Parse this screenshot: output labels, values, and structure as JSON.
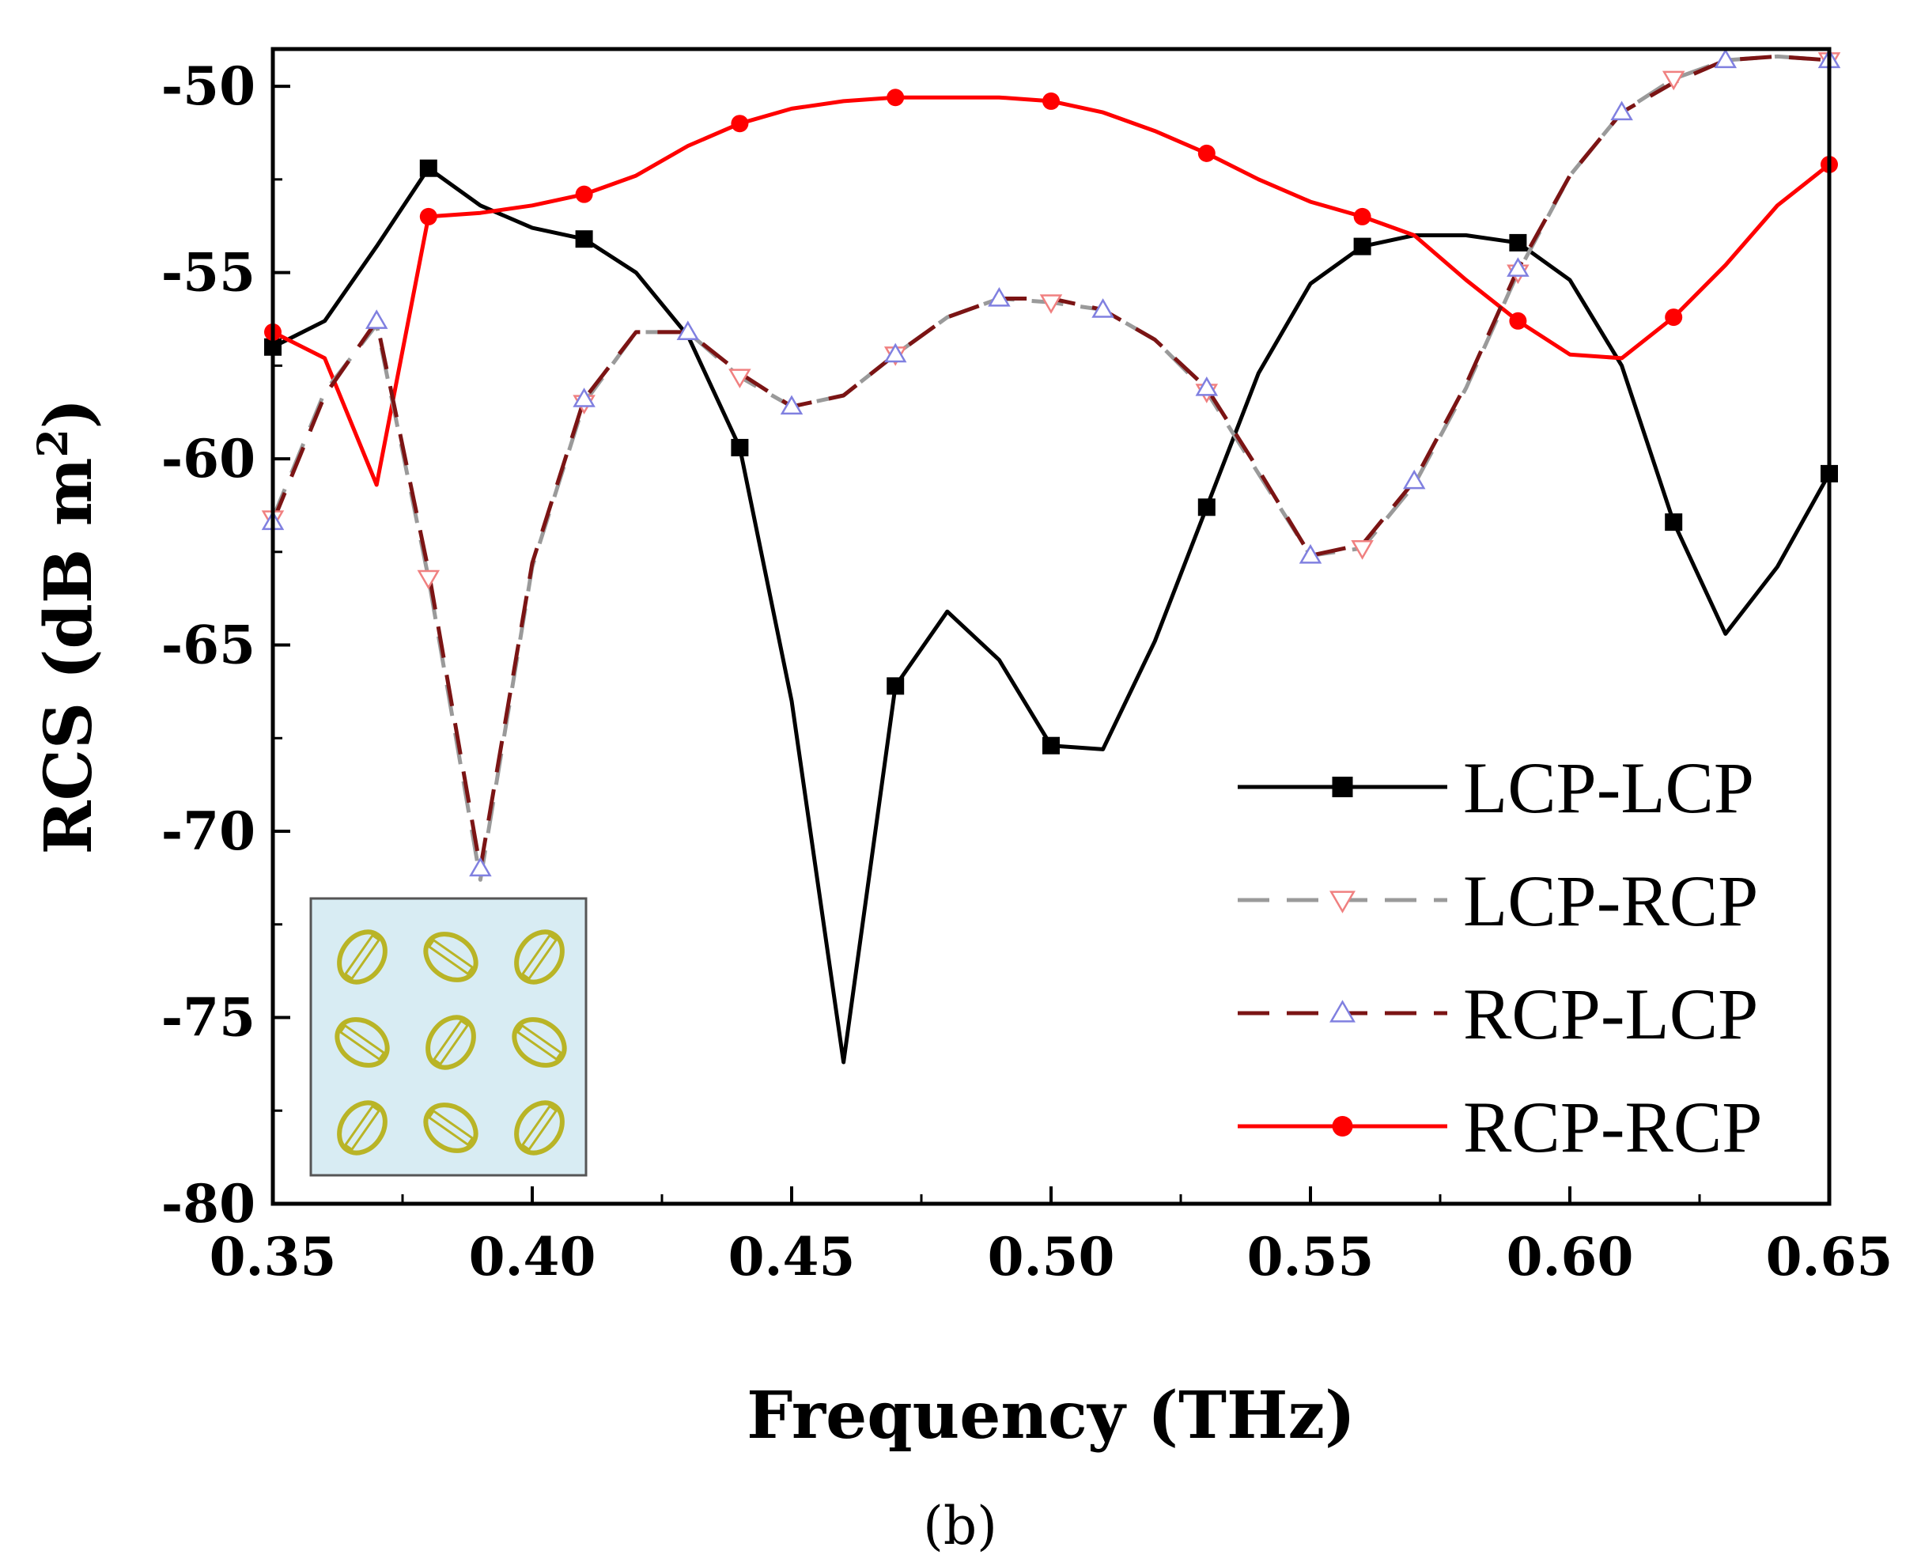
{
  "chart_data": {
    "type": "line",
    "xlabel": "Frequency (THz)",
    "ylabel_main": "RCS (dB m",
    "ylabel_sup": "2",
    "ylabel_close": ")",
    "caption": "(b)",
    "xlim": [
      0.35,
      0.65
    ],
    "ylim": [
      -80,
      -49
    ],
    "x_ticks": [
      0.35,
      0.4,
      0.45,
      0.5,
      0.55,
      0.6,
      0.65
    ],
    "x_tick_labels": [
      "0.35",
      "0.40",
      "0.45",
      "0.50",
      "0.55",
      "0.60",
      "0.65"
    ],
    "y_ticks": [
      -80,
      -75,
      -70,
      -65,
      -60,
      -55,
      -50
    ],
    "y_tick_labels": [
      "-80",
      "-75",
      "-70",
      "-65",
      "-60",
      "-55",
      "-50"
    ],
    "legend_position": "bottom-right",
    "inset": "metasurface unit cell array (3x3 split-ring elements)",
    "series": [
      {
        "name": "LCP-LCP",
        "color": "#000000",
        "dash": "solid",
        "marker": "square",
        "x": [
          0.35,
          0.36,
          0.37,
          0.38,
          0.39,
          0.4,
          0.41,
          0.42,
          0.43,
          0.44,
          0.45,
          0.46,
          0.47,
          0.48,
          0.49,
          0.5,
          0.51,
          0.52,
          0.53,
          0.54,
          0.55,
          0.56,
          0.57,
          0.58,
          0.59,
          0.6,
          0.61,
          0.62,
          0.63,
          0.64,
          0.65
        ],
        "y": [
          -57.0,
          -56.3,
          -54.3,
          -52.2,
          -53.2,
          -53.8,
          -54.1,
          -55.0,
          -56.7,
          -59.7,
          -66.5,
          -76.2,
          -66.1,
          -64.1,
          -65.4,
          -67.7,
          -67.8,
          -64.9,
          -61.3,
          -57.7,
          -55.3,
          -54.3,
          -54.0,
          -54.0,
          -54.2,
          -55.2,
          -57.5,
          -61.7,
          -64.7,
          -62.9,
          -60.4
        ],
        "marker_x": [
          0.35,
          0.38,
          0.41,
          0.44,
          0.47,
          0.5,
          0.53,
          0.56,
          0.59,
          0.62,
          0.65
        ]
      },
      {
        "name": "LCP-RCP",
        "color": "#9a9a9a",
        "dash": "dashed",
        "marker": "down-triangle",
        "marker_color": "#f08080",
        "x": [
          0.35,
          0.36,
          0.37,
          0.38,
          0.39,
          0.4,
          0.41,
          0.42,
          0.43,
          0.44,
          0.45,
          0.46,
          0.47,
          0.48,
          0.49,
          0.5,
          0.51,
          0.52,
          0.53,
          0.54,
          0.55,
          0.56,
          0.57,
          0.58,
          0.59,
          0.6,
          0.61,
          0.62,
          0.63,
          0.64,
          0.65
        ],
        "y": [
          -61.6,
          -58.2,
          -56.4,
          -63.2,
          -71.3,
          -62.9,
          -58.5,
          -56.6,
          -56.6,
          -57.8,
          -58.6,
          -58.3,
          -57.2,
          -56.2,
          -55.7,
          -55.8,
          -56.0,
          -56.8,
          -58.2,
          -60.4,
          -62.6,
          -62.4,
          -60.7,
          -58.1,
          -55.0,
          -52.4,
          -50.7,
          -49.8,
          -49.3,
          -49.2,
          -49.3
        ],
        "marker_x": [
          0.35,
          0.38,
          0.41,
          0.44,
          0.47,
          0.5,
          0.53,
          0.56,
          0.59,
          0.62,
          0.65
        ]
      },
      {
        "name": "RCP-LCP",
        "color": "#7b1414",
        "dash": "dashed",
        "marker": "up-triangle",
        "marker_color": "#8080e0",
        "x": [
          0.35,
          0.36,
          0.37,
          0.38,
          0.39,
          0.4,
          0.41,
          0.42,
          0.43,
          0.44,
          0.45,
          0.46,
          0.47,
          0.48,
          0.49,
          0.5,
          0.51,
          0.52,
          0.53,
          0.54,
          0.55,
          0.56,
          0.57,
          0.58,
          0.59,
          0.6,
          0.61,
          0.62,
          0.63,
          0.64,
          0.65
        ],
        "y": [
          -61.7,
          -58.3,
          -56.3,
          -63.0,
          -71.0,
          -62.8,
          -58.4,
          -56.6,
          -56.6,
          -57.7,
          -58.6,
          -58.3,
          -57.2,
          -56.2,
          -55.7,
          -55.7,
          -56.0,
          -56.8,
          -58.1,
          -60.3,
          -62.6,
          -62.3,
          -60.6,
          -58.0,
          -54.9,
          -52.4,
          -50.7,
          -49.9,
          -49.3,
          -49.2,
          -49.3
        ],
        "marker_x": [
          0.35,
          0.37,
          0.39,
          0.41,
          0.43,
          0.45,
          0.47,
          0.49,
          0.51,
          0.53,
          0.55,
          0.57,
          0.59,
          0.61,
          0.63,
          0.65
        ]
      },
      {
        "name": "RCP-RCP",
        "color": "#ff0000",
        "dash": "solid",
        "marker": "circle",
        "x": [
          0.35,
          0.36,
          0.37,
          0.38,
          0.39,
          0.4,
          0.41,
          0.42,
          0.43,
          0.44,
          0.45,
          0.46,
          0.47,
          0.48,
          0.49,
          0.5,
          0.51,
          0.52,
          0.53,
          0.54,
          0.55,
          0.56,
          0.57,
          0.58,
          0.59,
          0.6,
          0.61,
          0.62,
          0.63,
          0.64,
          0.65
        ],
        "y": [
          -56.6,
          -57.3,
          -60.7,
          -53.5,
          -53.4,
          -53.2,
          -52.9,
          -52.4,
          -51.6,
          -51.0,
          -50.6,
          -50.4,
          -50.3,
          -50.3,
          -50.3,
          -50.4,
          -50.7,
          -51.2,
          -51.8,
          -52.5,
          -53.1,
          -53.5,
          -54.0,
          -55.2,
          -56.3,
          -57.2,
          -57.3,
          -56.2,
          -54.8,
          -53.2,
          -52.1
        ],
        "marker_x": [
          0.35,
          0.38,
          0.41,
          0.44,
          0.47,
          0.5,
          0.53,
          0.56,
          0.59,
          0.62,
          0.65
        ]
      }
    ]
  }
}
